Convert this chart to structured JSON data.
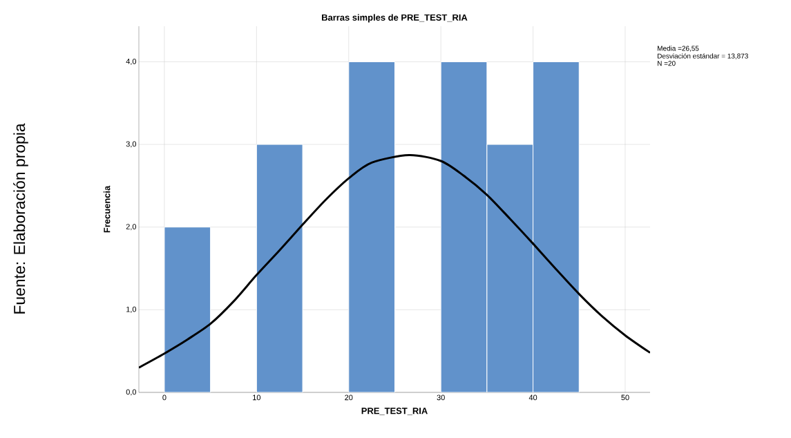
{
  "chart_data": {
    "type": "histogram",
    "title": "Barras simples de PRE_TEST_RIA",
    "xlabel": "PRE_TEST_RIA",
    "ylabel": "Frecuencia",
    "bins": [
      0,
      5,
      10,
      15,
      20,
      25,
      30,
      35,
      40,
      45
    ],
    "values": [
      2,
      0,
      3,
      0,
      4,
      0,
      4,
      3,
      4
    ],
    "color": "#6192cb",
    "series": [
      {
        "type": "line",
        "color": "#000000",
        "x": [
          -2.77,
          0,
          2.5,
          5,
          7.5,
          10,
          12.5,
          15,
          17.5,
          20,
          22.5,
          26.55,
          30,
          32.5,
          35,
          37.5,
          40,
          42.5,
          45,
          47.5,
          50,
          52.7
        ],
        "values": [
          0.3,
          0.47,
          0.64,
          0.83,
          1.1,
          1.42,
          1.72,
          2.03,
          2.33,
          2.59,
          2.78,
          2.87,
          2.8,
          2.62,
          2.39,
          2.1,
          1.8,
          1.49,
          1.19,
          0.92,
          0.69,
          0.48
        ]
      }
    ],
    "xlim": [
      -2.77,
      52.7
    ],
    "ylim": [
      0,
      4.43
    ],
    "xticks": [
      0,
      10,
      20,
      30,
      40,
      50
    ],
    "yticks": [
      {
        "value": 0,
        "label": "0,0"
      },
      {
        "value": 1,
        "label": "1,0"
      },
      {
        "value": 2,
        "label": "2,0"
      },
      {
        "value": 3,
        "label": "3,0"
      },
      {
        "value": 4,
        "label": "4,0"
      }
    ],
    "grid": true,
    "annotations": [
      "Media =26,55",
      "Desviación estándar = 13,873",
      "N =20",
      "Fuente: Elaboración propia"
    ]
  }
}
